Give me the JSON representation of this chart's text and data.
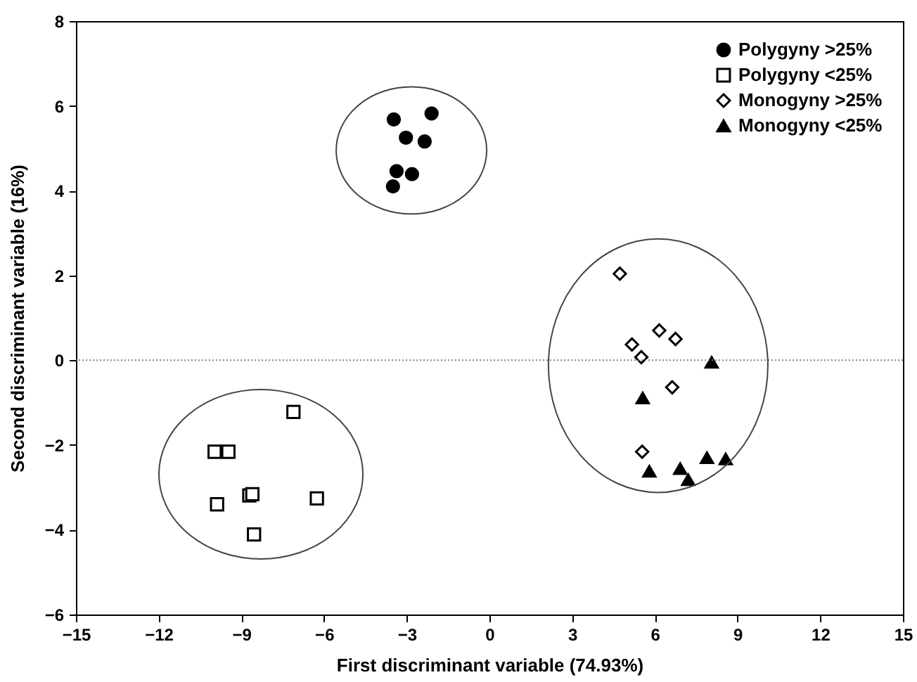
{
  "chart_data": {
    "type": "scatter",
    "xlabel": "First discriminant variable (74.93%)",
    "ylabel": "Second discriminant variable (16%)",
    "xlim": [
      -15,
      15
    ],
    "xticks": [
      -15,
      -12,
      -9,
      -6,
      -3,
      0,
      3,
      6,
      9,
      12,
      15
    ],
    "ylim": [
      -6,
      8
    ],
    "yticks": [
      -6,
      -4,
      -2,
      0,
      2,
      4,
      6,
      8
    ],
    "grid": false,
    "legend": "top right",
    "ref_lines": [
      {
        "axis": "y",
        "value": 0,
        "line_style": "dotted",
        "color": "#808080"
      }
    ],
    "series": [
      {
        "name": "Polygyny >25%",
        "color": "#000000",
        "marker": "circle",
        "x": [
          -3.47,
          -2.1,
          -3.03,
          -2.35,
          -3.37,
          -2.81,
          -3.5
        ],
        "values": [
          5.68,
          5.82,
          5.25,
          5.16,
          4.46,
          4.39,
          4.1
        ]
      },
      {
        "name": "Polygyny <25%",
        "color": "#000000",
        "marker": "square",
        "x": [
          -7.11,
          -9.97,
          -9.47,
          -8.71,
          -8.6,
          -9.88,
          -6.26,
          -8.54
        ],
        "values": [
          -1.22,
          -2.16,
          -2.16,
          -3.19,
          -3.16,
          -3.4,
          -3.26,
          -4.11
        ]
      },
      {
        "name": "Monogyny >25%",
        "color": "#000000",
        "marker": "diamond",
        "x": [
          4.73,
          6.16,
          6.75,
          5.17,
          5.51,
          6.63,
          5.54
        ],
        "values": [
          2.04,
          0.7,
          0.5,
          0.37,
          0.07,
          -0.64,
          -2.16
        ]
      },
      {
        "name": "Monogyny <25%",
        "color": "#000000",
        "marker": "triangle",
        "x": [
          8.06,
          5.56,
          5.8,
          6.92,
          7.21,
          7.89,
          8.57
        ],
        "values": [
          -0.05,
          -0.89,
          -2.62,
          -2.56,
          -2.82,
          -2.3,
          -2.33
        ]
      }
    ]
  }
}
